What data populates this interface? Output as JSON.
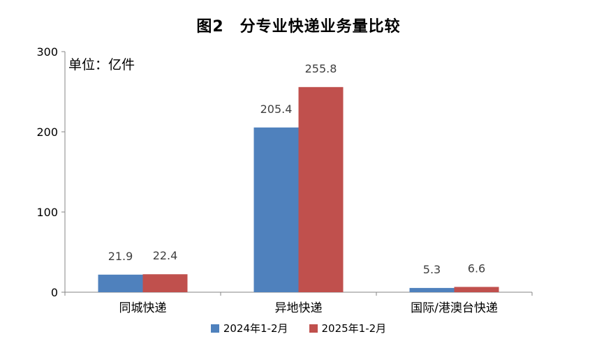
{
  "chart_data": {
    "type": "bar",
    "title": "图2　分专业快递业务量比较",
    "unit_label": "单位：亿件",
    "categories": [
      "同城快递",
      "异地快递",
      "国际/港澳台快递"
    ],
    "series": [
      {
        "name": "2024年1-2月",
        "color": "#4F81BD",
        "values": [
          21.9,
          205.4,
          5.3
        ]
      },
      {
        "name": "2025年1-2月",
        "color": "#C0504D",
        "values": [
          22.4,
          255.8,
          6.6
        ]
      }
    ],
    "ylim": [
      0,
      300
    ],
    "yticks": [
      0,
      100,
      200,
      300
    ],
    "grid": false,
    "legend_position": "bottom"
  }
}
